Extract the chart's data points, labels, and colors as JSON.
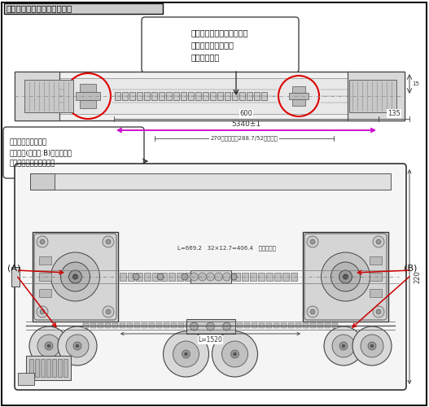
{
  "title": "ケーブルの耐久試験機正面図",
  "bg": "#ffffff",
  "draw_color": "#555555",
  "dark": "#222222",
  "callout1": "チェーン駆動であることを\n示すために部分的に\nチェーン製図",
  "callout2": "可動部は可動範囲を\n二点鎖線(想像線:B)で図示し、\n干渉チェックをします。",
  "lA": "(A)",
  "lB": "(B)",
  "d1": "600",
  "d2": "135",
  "d3": "5340±1",
  "d4": "270（御客様：288.7/52ランク）",
  "d5": "L=669.2   32×12.7=406.4   御客ヤック",
  "d6": "L=1520",
  "d7": "220"
}
